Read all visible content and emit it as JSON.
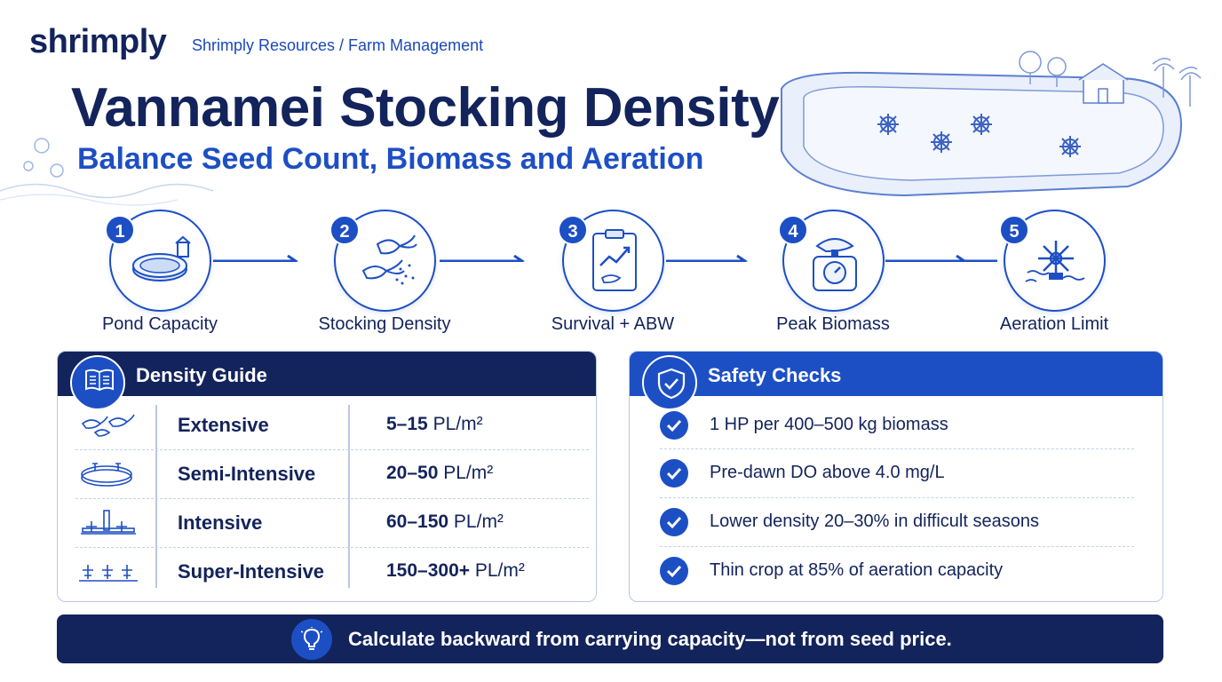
{
  "header": {
    "logo": "shrimply",
    "breadcrumb": "Shrimply Resources / Farm Management",
    "title": "Vannamei Stocking Density",
    "subtitle": "Balance Seed Count, Biomass and Aeration"
  },
  "steps": [
    {
      "number": "1",
      "label": "Pond Capacity",
      "icon": "pond-icon"
    },
    {
      "number": "2",
      "label": "Stocking Density",
      "icon": "shrimp-icon"
    },
    {
      "number": "3",
      "label": "Survival + ABW",
      "icon": "clipboard-chart-icon"
    },
    {
      "number": "4",
      "label": "Peak Biomass",
      "icon": "scale-icon"
    },
    {
      "number": "5",
      "label": "Aeration Limit",
      "icon": "aerator-icon"
    }
  ],
  "density_guide": {
    "title": "Density Guide",
    "icon": "book-icon",
    "rows": [
      {
        "name": "Extensive",
        "value": "5–15",
        "unit": "PL/m²",
        "icon": "shrimp-group-icon"
      },
      {
        "name": "Semi-Intensive",
        "value": "20–50",
        "unit": "PL/m²",
        "icon": "pond-small-icon"
      },
      {
        "name": "Intensive",
        "value": "60–150",
        "unit": "PL/m²",
        "icon": "aerated-pond-icon"
      },
      {
        "name": "Super-Intensive",
        "value": "150–300+",
        "unit": "PL/m²",
        "icon": "multi-aerator-icon"
      }
    ]
  },
  "safety_checks": {
    "title": "Safety Checks",
    "icon": "shield-check-icon",
    "items": [
      "1 HP per 400–500 kg biomass",
      "Pre-dawn DO above 4.0 mg/L",
      "Lower density 20–30% in difficult seasons",
      "Thin crop at 85% of aeration capacity"
    ]
  },
  "footer": {
    "text": "Calculate backward from carrying capacity—not from seed price.",
    "icon": "lightbulb-icon"
  },
  "colors": {
    "navy": "#13235b",
    "blue": "#1d4fc4",
    "border": "#b9c7e6"
  }
}
